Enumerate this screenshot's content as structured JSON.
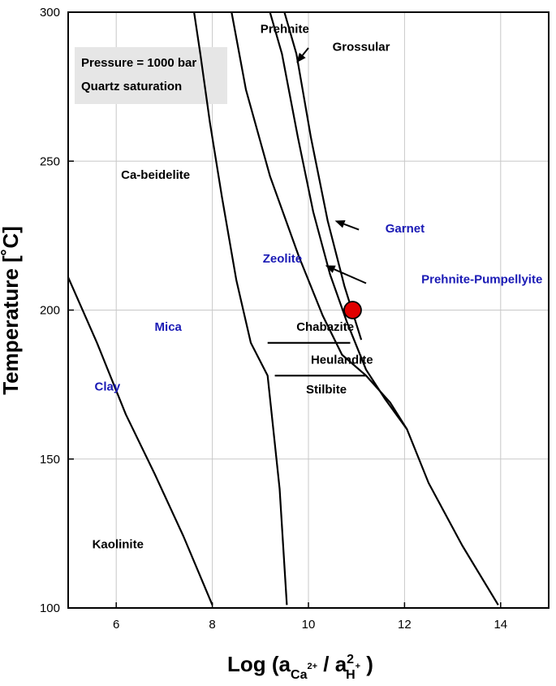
{
  "chart_data": {
    "type": "line",
    "title": "",
    "xlabel": {
      "prefix": "Log (a",
      "sub1": "Ca",
      "sup1": "2+",
      "slash": " / a",
      "sup2": "2",
      "sub2": "H",
      "sup3": "+",
      "suffix": " )"
    },
    "ylabel": "Temperature [˚C]",
    "xlim": [
      5,
      15
    ],
    "ylim": [
      100,
      300
    ],
    "xticks": [
      6,
      8,
      10,
      12,
      14
    ],
    "yticks": [
      100,
      150,
      200,
      250,
      300
    ],
    "grid": true,
    "conditions": [
      "Pressure = 1000 bar",
      "Quartz saturation"
    ],
    "boundaries": [
      {
        "name": "clay-mica",
        "points": [
          [
            5.0,
            211
          ],
          [
            5.6,
            189
          ],
          [
            6.2,
            165
          ],
          [
            6.8,
            145
          ],
          [
            7.4,
            124
          ],
          [
            8.0,
            101
          ]
        ]
      },
      {
        "name": "cabeidelite-zeolite",
        "points": [
          [
            7.62,
            300
          ],
          [
            7.75,
            286
          ],
          [
            7.95,
            263
          ],
          [
            8.2,
            238
          ],
          [
            8.5,
            210
          ],
          [
            8.8,
            189
          ],
          [
            9.15,
            178
          ],
          [
            9.4,
            140
          ],
          [
            9.55,
            101
          ]
        ]
      },
      {
        "name": "zeolite-prehnite",
        "points": [
          [
            8.4,
            300
          ],
          [
            8.7,
            274
          ],
          [
            9.2,
            245
          ],
          [
            9.8,
            218
          ],
          [
            10.3,
            198
          ],
          [
            10.7,
            185
          ],
          [
            11.2,
            178
          ],
          [
            11.7,
            169
          ],
          [
            12.05,
            160
          ],
          [
            12.5,
            142
          ],
          [
            13.2,
            121
          ],
          [
            13.95,
            101
          ]
        ]
      },
      {
        "name": "prehnite-grossular",
        "points": [
          [
            9.2,
            300
          ],
          [
            9.45,
            286
          ],
          [
            9.78,
            258
          ],
          [
            10.1,
            233
          ],
          [
            10.45,
            212
          ],
          [
            10.8,
            196
          ],
          [
            11.2,
            180
          ],
          [
            11.6,
            170
          ],
          [
            12.05,
            160
          ]
        ]
      },
      {
        "name": "grossular-garnet",
        "points": [
          [
            9.5,
            300
          ],
          [
            9.75,
            286
          ],
          [
            10.05,
            258
          ],
          [
            10.4,
            230
          ],
          [
            10.75,
            208
          ],
          [
            11.1,
            190
          ]
        ]
      },
      {
        "name": "chabazite-heulandite",
        "points": [
          [
            9.15,
            189
          ],
          [
            10.87,
            189
          ]
        ]
      },
      {
        "name": "heulandite-stilbite",
        "points": [
          [
            9.3,
            178
          ],
          [
            11.2,
            178
          ]
        ]
      }
    ],
    "annotations": [
      {
        "text": "Prehnite",
        "x": 9.0,
        "y": 293,
        "color": "#000000"
      },
      {
        "text": "Grossular",
        "x": 10.5,
        "y": 287,
        "color": "#000000"
      },
      {
        "text": "Ca-beidelite",
        "x": 6.1,
        "y": 244,
        "color": "#000000"
      },
      {
        "text": "Garnet",
        "x": 11.6,
        "y": 226,
        "color": "#1a1ab5"
      },
      {
        "text": "Zeolite",
        "x": 9.05,
        "y": 216,
        "color": "#1a1ab5"
      },
      {
        "text": "Prehnite-Pumpellyite",
        "x": 12.35,
        "y": 209,
        "color": "#1a1ab5"
      },
      {
        "text": "Mica",
        "x": 6.8,
        "y": 193,
        "color": "#1a1ab5"
      },
      {
        "text": "Chabazite",
        "x": 9.75,
        "y": 193,
        "color": "#000000"
      },
      {
        "text": "Heulandite",
        "x": 10.05,
        "y": 182,
        "color": "#000000"
      },
      {
        "text": "Stilbite",
        "x": 9.95,
        "y": 172,
        "color": "#000000"
      },
      {
        "text": "Clay",
        "x": 5.55,
        "y": 173,
        "color": "#1a1ab5"
      },
      {
        "text": "Kaolinite",
        "x": 5.5,
        "y": 120,
        "color": "#000000"
      }
    ],
    "arrows": [
      {
        "name": "grossular-arrow",
        "from": [
          10.0,
          288
        ],
        "to": [
          9.75,
          283
        ]
      },
      {
        "name": "garnet-arrow",
        "from": [
          11.05,
          227
        ],
        "to": [
          10.55,
          230
        ]
      },
      {
        "name": "prehnite-pumpellyite-arrow",
        "from": [
          11.2,
          209
        ],
        "to": [
          10.35,
          215
        ]
      }
    ],
    "point": {
      "x": 10.92,
      "y": 200,
      "color": "#e00000"
    },
    "colors": {
      "axis": "#000000",
      "grid": "#c8c8c8",
      "blue_labels": "#1a1ab5",
      "box": "#e6e6e6",
      "point": "#e00000"
    }
  }
}
